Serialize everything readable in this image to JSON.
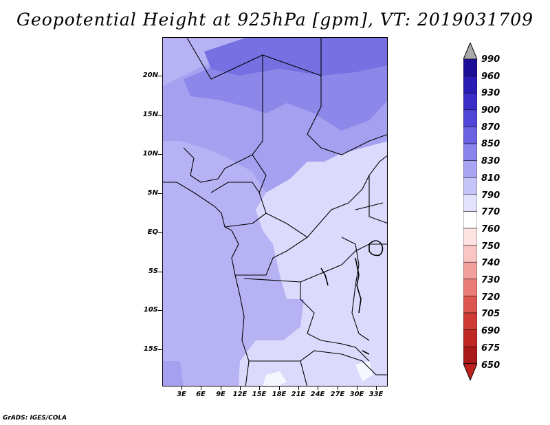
{
  "title": "Geopotential Height at 925hPa [gpm], VT: 2019031709",
  "credit": "GrADS: IGES/COLA",
  "lat_labels": [
    "20N",
    "15N",
    "10N",
    "5N",
    "EQ",
    "5S",
    "10S",
    "15S"
  ],
  "lon_labels": [
    "3E",
    "6E",
    "9E",
    "12E",
    "15E",
    "18E",
    "21E",
    "24E",
    "27E",
    "30E",
    "33E"
  ],
  "colorbar": {
    "labels": [
      "990",
      "960",
      "930",
      "900",
      "870",
      "850",
      "830",
      "810",
      "790",
      "770",
      "760",
      "750",
      "740",
      "730",
      "720",
      "705",
      "690",
      "675",
      "650"
    ],
    "colors": [
      "#aaaaaa",
      "#1c0f96",
      "#2a1cb4",
      "#3b2ec8",
      "#4f45d6",
      "#6b62e2",
      "#8b84ec",
      "#aaa5f3",
      "#c6c3f8",
      "#e3e2fc",
      "#ffffff",
      "#fde3e1",
      "#f9c6c3",
      "#f2a09c",
      "#e97c77",
      "#dd5750",
      "#cf3a34",
      "#bf2823",
      "#a81a17",
      "#c0231e"
    ]
  }
}
